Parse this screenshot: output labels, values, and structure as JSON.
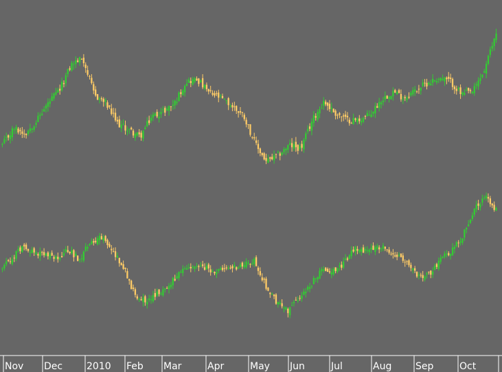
{
  "colors": {
    "background": "#666666",
    "up": "#33cc33",
    "down": "#ffcc66",
    "axis": "#ffffff",
    "text": "#ffffff"
  },
  "chart_data": {
    "type": "candlestick",
    "title": "",
    "grid": false,
    "legend": "none",
    "months": [
      "Nov",
      "Dec",
      "2010",
      "Feb",
      "Mar",
      "Apr",
      "May",
      "Jun",
      "Jul",
      "Aug",
      "Sep",
      "Oct"
    ],
    "series": [
      {
        "levels": [
          30,
          40,
          37,
          45,
          55,
          63,
          78,
          82,
          60,
          55,
          43,
          39,
          35,
          47,
          50,
          55,
          68,
          69,
          61,
          58,
          53,
          48,
          31,
          20,
          24,
          30,
          28,
          45,
          56,
          49,
          45,
          45,
          48,
          57,
          62,
          58,
          63,
          67,
          70,
          68,
          60,
          62,
          75,
          97
        ]
      },
      {
        "levels": [
          40,
          47,
          55,
          49,
          48,
          45,
          52,
          45,
          57,
          60,
          51,
          41,
          22,
          17,
          21,
          26,
          35,
          39,
          40,
          38,
          37,
          40,
          41,
          44,
          27,
          16,
          10,
          19,
          27,
          37,
          38,
          41,
          52,
          51,
          54,
          53,
          47,
          41,
          33,
          35,
          47,
          51,
          62,
          80,
          88,
          79
        ]
      }
    ]
  }
}
